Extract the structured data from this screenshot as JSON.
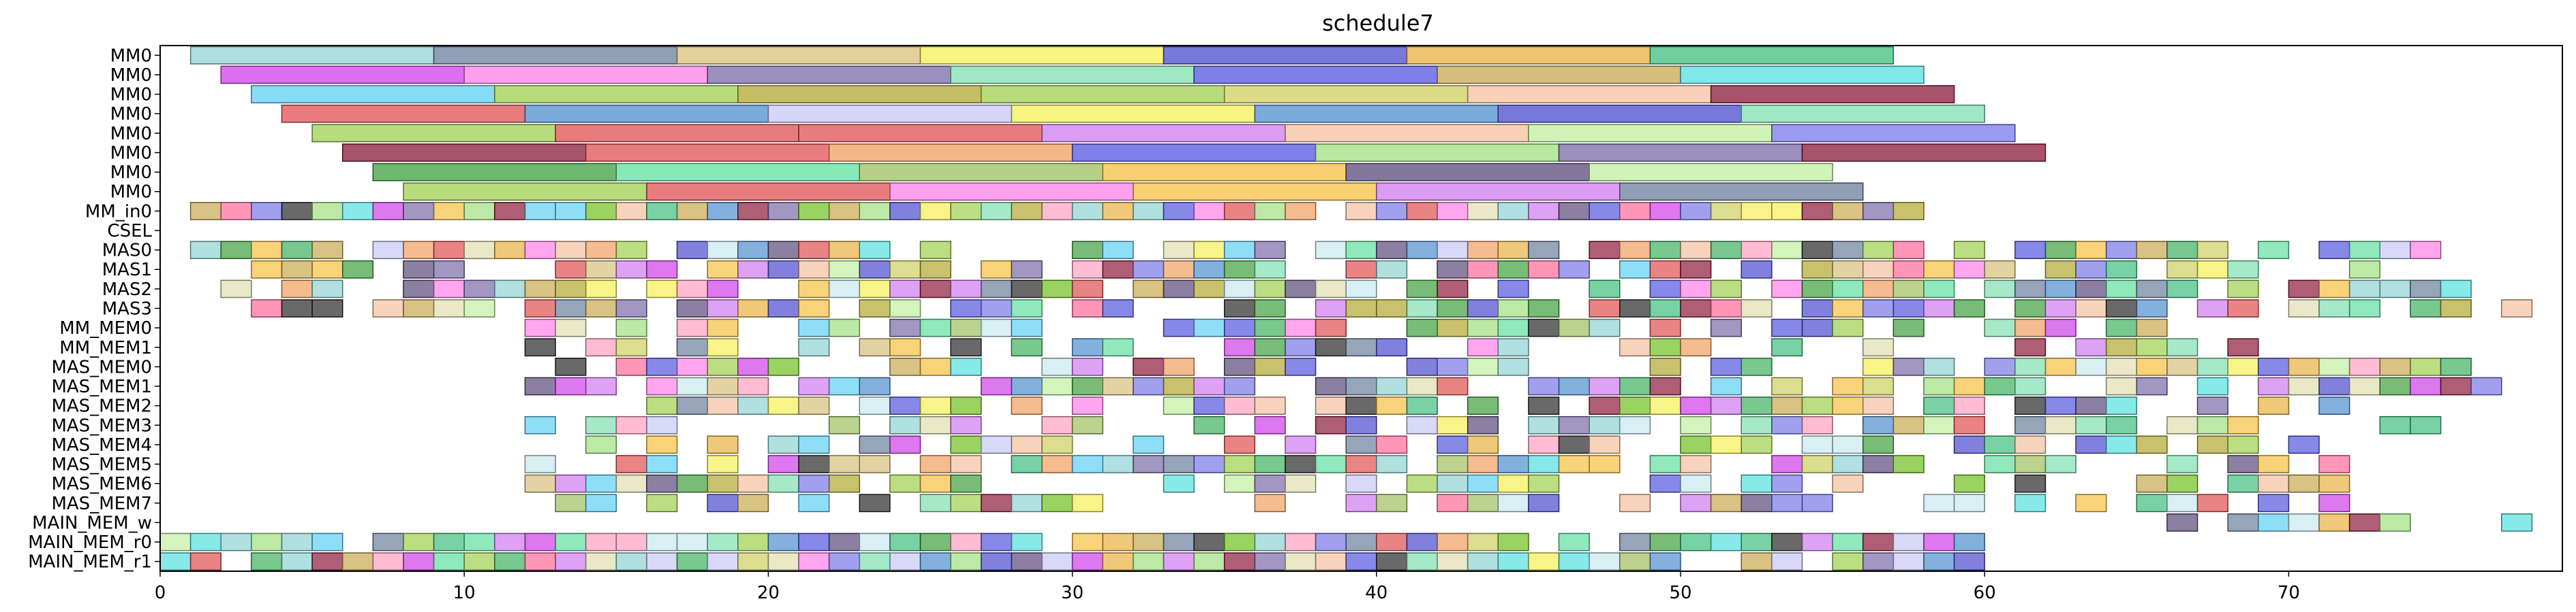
{
  "chart_data": {
    "type": "gantt",
    "title": "schedule7",
    "xlim": [
      0,
      79
    ],
    "xticks": [
      0,
      10,
      20,
      30,
      40,
      50,
      60,
      70
    ],
    "rows": [
      "MM0",
      "MM0",
      "MM0",
      "MM0",
      "MM0",
      "MM0",
      "MM0",
      "MM0",
      "MM_in0",
      "CSEL",
      "MAS0",
      "MAS1",
      "MAS2",
      "MAS3",
      "MM_MEM0",
      "MM_MEM1",
      "MAS_MEM0",
      "MAS_MEM1",
      "MAS_MEM2",
      "MAS_MEM3",
      "MAS_MEM4",
      "MAS_MEM5",
      "MAS_MEM6",
      "MAS_MEM7",
      "MAIN_MEM_w",
      "MAIN_MEM_r0",
      "MAIN_MEM_r1"
    ],
    "palette": [
      "#8fd3d1",
      "#6b7f9e",
      "#d9c07a",
      "#f5f056",
      "#4b4bcf",
      "#e8b040",
      "#3fbf7f",
      "#cf3fe8",
      "#ff80e8",
      "#7a6aa8",
      "#7fe0b0",
      "#5555e0",
      "#c8a850",
      "#56e0e0",
      "#5fd0f5",
      "#9fd04f",
      "#b0a830",
      "#f5c0a0",
      "#8b1a3a",
      "#e05050",
      "#4f8fcf",
      "#c8c8f5",
      "#cfcf60",
      "#3fb060",
      "#c0f0a0",
      "#d07bf0",
      "#7878e8",
      "#f0a060",
      "#3fa03f",
      "#5fe0a0",
      "#9fc060",
      "#f5c040",
      "#5a4a7a",
      "#a0e080",
      "#70c020",
      "#2a2a2a",
      "#e0e0b0",
      "#ffa0c0",
      "#c8e8f0",
      "#ff6a9a"
    ],
    "mm0_bars": [
      [
        [
          1,
          9,
          0
        ],
        [
          9,
          17,
          1
        ],
        [
          17,
          25,
          2
        ],
        [
          25,
          33,
          3
        ],
        [
          33,
          41,
          4
        ],
        [
          41,
          49,
          5
        ],
        [
          49,
          57,
          6
        ]
      ],
      [
        [
          2,
          10,
          7
        ],
        [
          10,
          18,
          8
        ],
        [
          18,
          26,
          9
        ],
        [
          26,
          34,
          10
        ],
        [
          34,
          42,
          11
        ],
        [
          42,
          50,
          12
        ],
        [
          50,
          58,
          13
        ]
      ],
      [
        [
          3,
          11,
          14
        ],
        [
          11,
          19,
          15
        ],
        [
          19,
          27,
          16
        ],
        [
          27,
          35,
          15
        ],
        [
          35,
          43,
          22
        ],
        [
          43,
          51,
          17
        ],
        [
          51,
          59,
          18
        ]
      ],
      [
        [
          4,
          12,
          19
        ],
        [
          12,
          20,
          20
        ],
        [
          20,
          28,
          21
        ],
        [
          28,
          36,
          3
        ],
        [
          36,
          44,
          20
        ],
        [
          44,
          52,
          4
        ],
        [
          52,
          60,
          10
        ]
      ],
      [
        [
          5,
          13,
          15
        ],
        [
          13,
          21,
          19
        ],
        [
          21,
          29,
          19
        ],
        [
          29,
          37,
          25
        ],
        [
          37,
          45,
          17
        ],
        [
          45,
          53,
          24
        ],
        [
          53,
          61,
          26
        ]
      ],
      [
        [
          6,
          14,
          18
        ],
        [
          14,
          22,
          19
        ],
        [
          22,
          30,
          27
        ],
        [
          30,
          38,
          11
        ],
        [
          38,
          46,
          33
        ],
        [
          46,
          54,
          9
        ],
        [
          54,
          62,
          18
        ]
      ],
      [
        [
          7,
          15,
          28
        ],
        [
          15,
          23,
          29
        ],
        [
          23,
          31,
          30
        ],
        [
          31,
          39,
          31
        ],
        [
          39,
          47,
          32
        ],
        [
          47,
          55,
          24
        ]
      ],
      [
        [
          8,
          16,
          15
        ],
        [
          16,
          24,
          19
        ],
        [
          24,
          32,
          8
        ],
        [
          32,
          40,
          31
        ],
        [
          40,
          48,
          25
        ],
        [
          48,
          56,
          1
        ]
      ]
    ],
    "memory_rows": [
      {
        "row": "MM_in0",
        "cells": "1-58"
      },
      {
        "row": "CSEL",
        "cells": ""
      },
      {
        "row": "MAS0",
        "cells": "1-75"
      },
      {
        "row": "MAS1",
        "cells": "1-73"
      },
      {
        "row": "MAS2",
        "cells": "1-76"
      },
      {
        "row": "MAS3",
        "cells": "1-78"
      },
      {
        "row": "MM_MEM0",
        "cells": "12-68"
      },
      {
        "row": "MM_MEM1",
        "cells": "12-69"
      },
      {
        "row": "MAS_MEM0",
        "cells": "12-76"
      },
      {
        "row": "MAS_MEM1",
        "cells": "12-77"
      },
      {
        "row": "MAS_MEM2",
        "cells": "12-72"
      },
      {
        "row": "MAS_MEM3",
        "cells": "12-75"
      },
      {
        "row": "MAS_MEM4",
        "cells": "12-71"
      },
      {
        "row": "MAS_MEM5",
        "cells": "12-73"
      },
      {
        "row": "MAS_MEM6",
        "cells": "12-75"
      },
      {
        "row": "MAS_MEM7",
        "cells": "12-72"
      },
      {
        "row": "MAIN_MEM_w",
        "cells": "64-79"
      },
      {
        "row": "MAIN_MEM_r0",
        "cells": "0-60"
      },
      {
        "row": "MAIN_MEM_r1",
        "cells": "0-60"
      }
    ]
  }
}
